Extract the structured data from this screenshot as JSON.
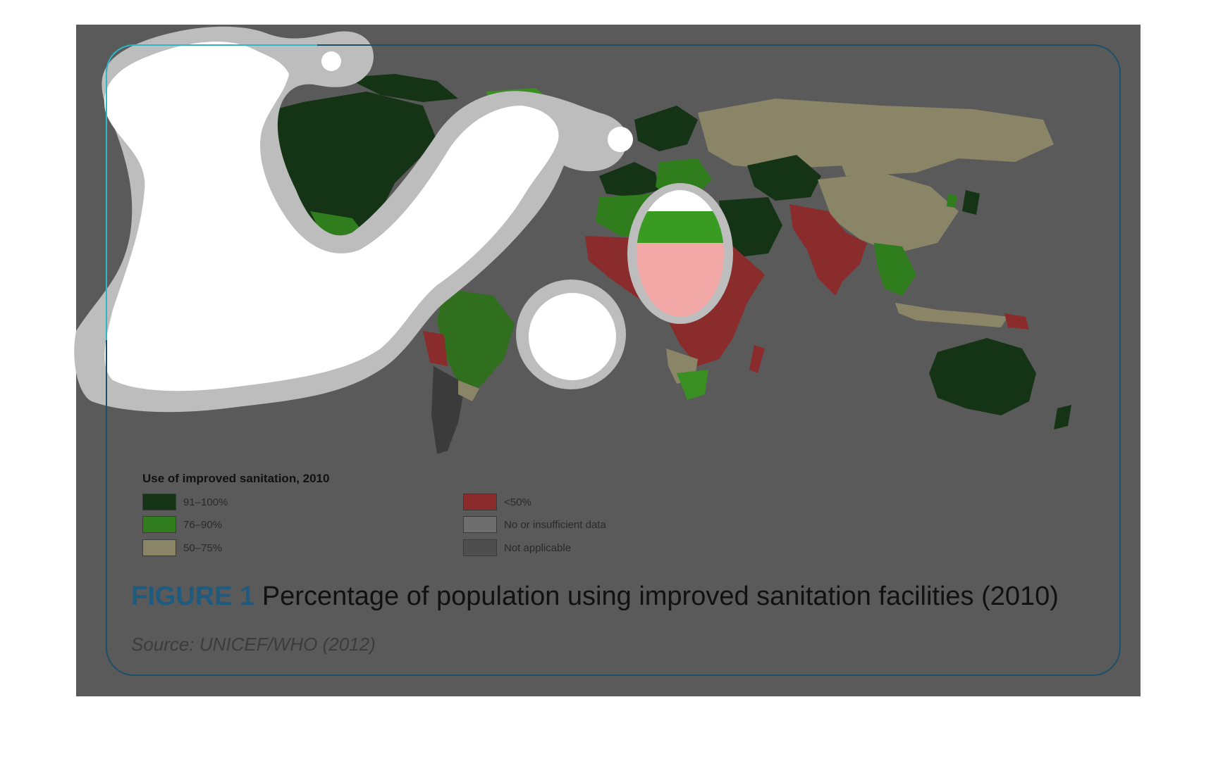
{
  "legend": {
    "title": "Use of improved sanitation, 2010",
    "items": [
      {
        "label": "91–100%",
        "color": "#153315"
      },
      {
        "label": "76–90%",
        "color": "#2f7d1d"
      },
      {
        "label": "50–75%",
        "color": "#8a8567"
      },
      {
        "label": "<50%",
        "color": "#8a2c2c"
      },
      {
        "label": "No or insufficient data",
        "color": "#6e6e6e"
      },
      {
        "label": "Not applicable",
        "color": "#4e4e4e"
      }
    ]
  },
  "caption": {
    "figure_label": "FIGURE 1",
    "text": "Percentage of population using improved sanitation facilities (2010)"
  },
  "source": "Source: UNICEF/WHO (2012)",
  "colors": {
    "overlay": "#5a5a5a",
    "frame": "#1c4f6a",
    "figure_label": "#1f5b7e",
    "highlight_white": "#ffffff",
    "highlight_grey": "#bdbdbd"
  }
}
